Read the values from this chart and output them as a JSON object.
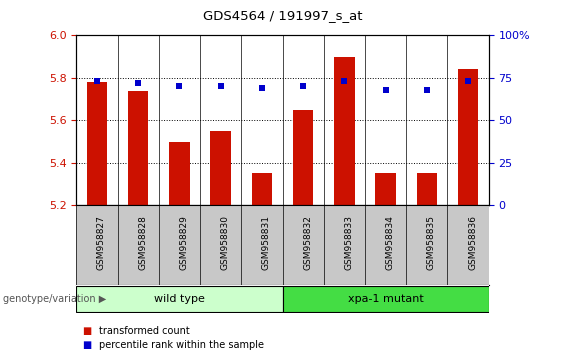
{
  "title": "GDS4564 / 191997_s_at",
  "samples": [
    "GSM958827",
    "GSM958828",
    "GSM958829",
    "GSM958830",
    "GSM958831",
    "GSM958832",
    "GSM958833",
    "GSM958834",
    "GSM958835",
    "GSM958836"
  ],
  "transformed_count": [
    5.78,
    5.74,
    5.5,
    5.55,
    5.35,
    5.65,
    5.9,
    5.35,
    5.35,
    5.84
  ],
  "percentile_rank": [
    73,
    72,
    70,
    70,
    69,
    70,
    73,
    68,
    68,
    73
  ],
  "ylim_left": [
    5.2,
    6.0
  ],
  "ylim_right": [
    0,
    100
  ],
  "yticks_left": [
    5.2,
    5.4,
    5.6,
    5.8,
    6.0
  ],
  "yticks_right": [
    0,
    25,
    50,
    75,
    100
  ],
  "bar_color": "#cc1100",
  "dot_color": "#0000cc",
  "bg_color": "#ffffff",
  "plot_bg": "#ffffff",
  "tick_area_bg": "#c8c8c8",
  "group1_label": "wild type",
  "group2_label": "xpa-1 mutant",
  "group1_color": "#ccffcc",
  "group2_color": "#44dd44",
  "group1_indices": [
    0,
    1,
    2,
    3,
    4
  ],
  "group2_indices": [
    5,
    6,
    7,
    8,
    9
  ],
  "legend_bar_label": "transformed count",
  "legend_dot_label": "percentile rank within the sample",
  "genotype_label": "genotype/variation",
  "left_axis_color": "#cc1100",
  "right_axis_color": "#0000cc",
  "bar_width": 0.5
}
